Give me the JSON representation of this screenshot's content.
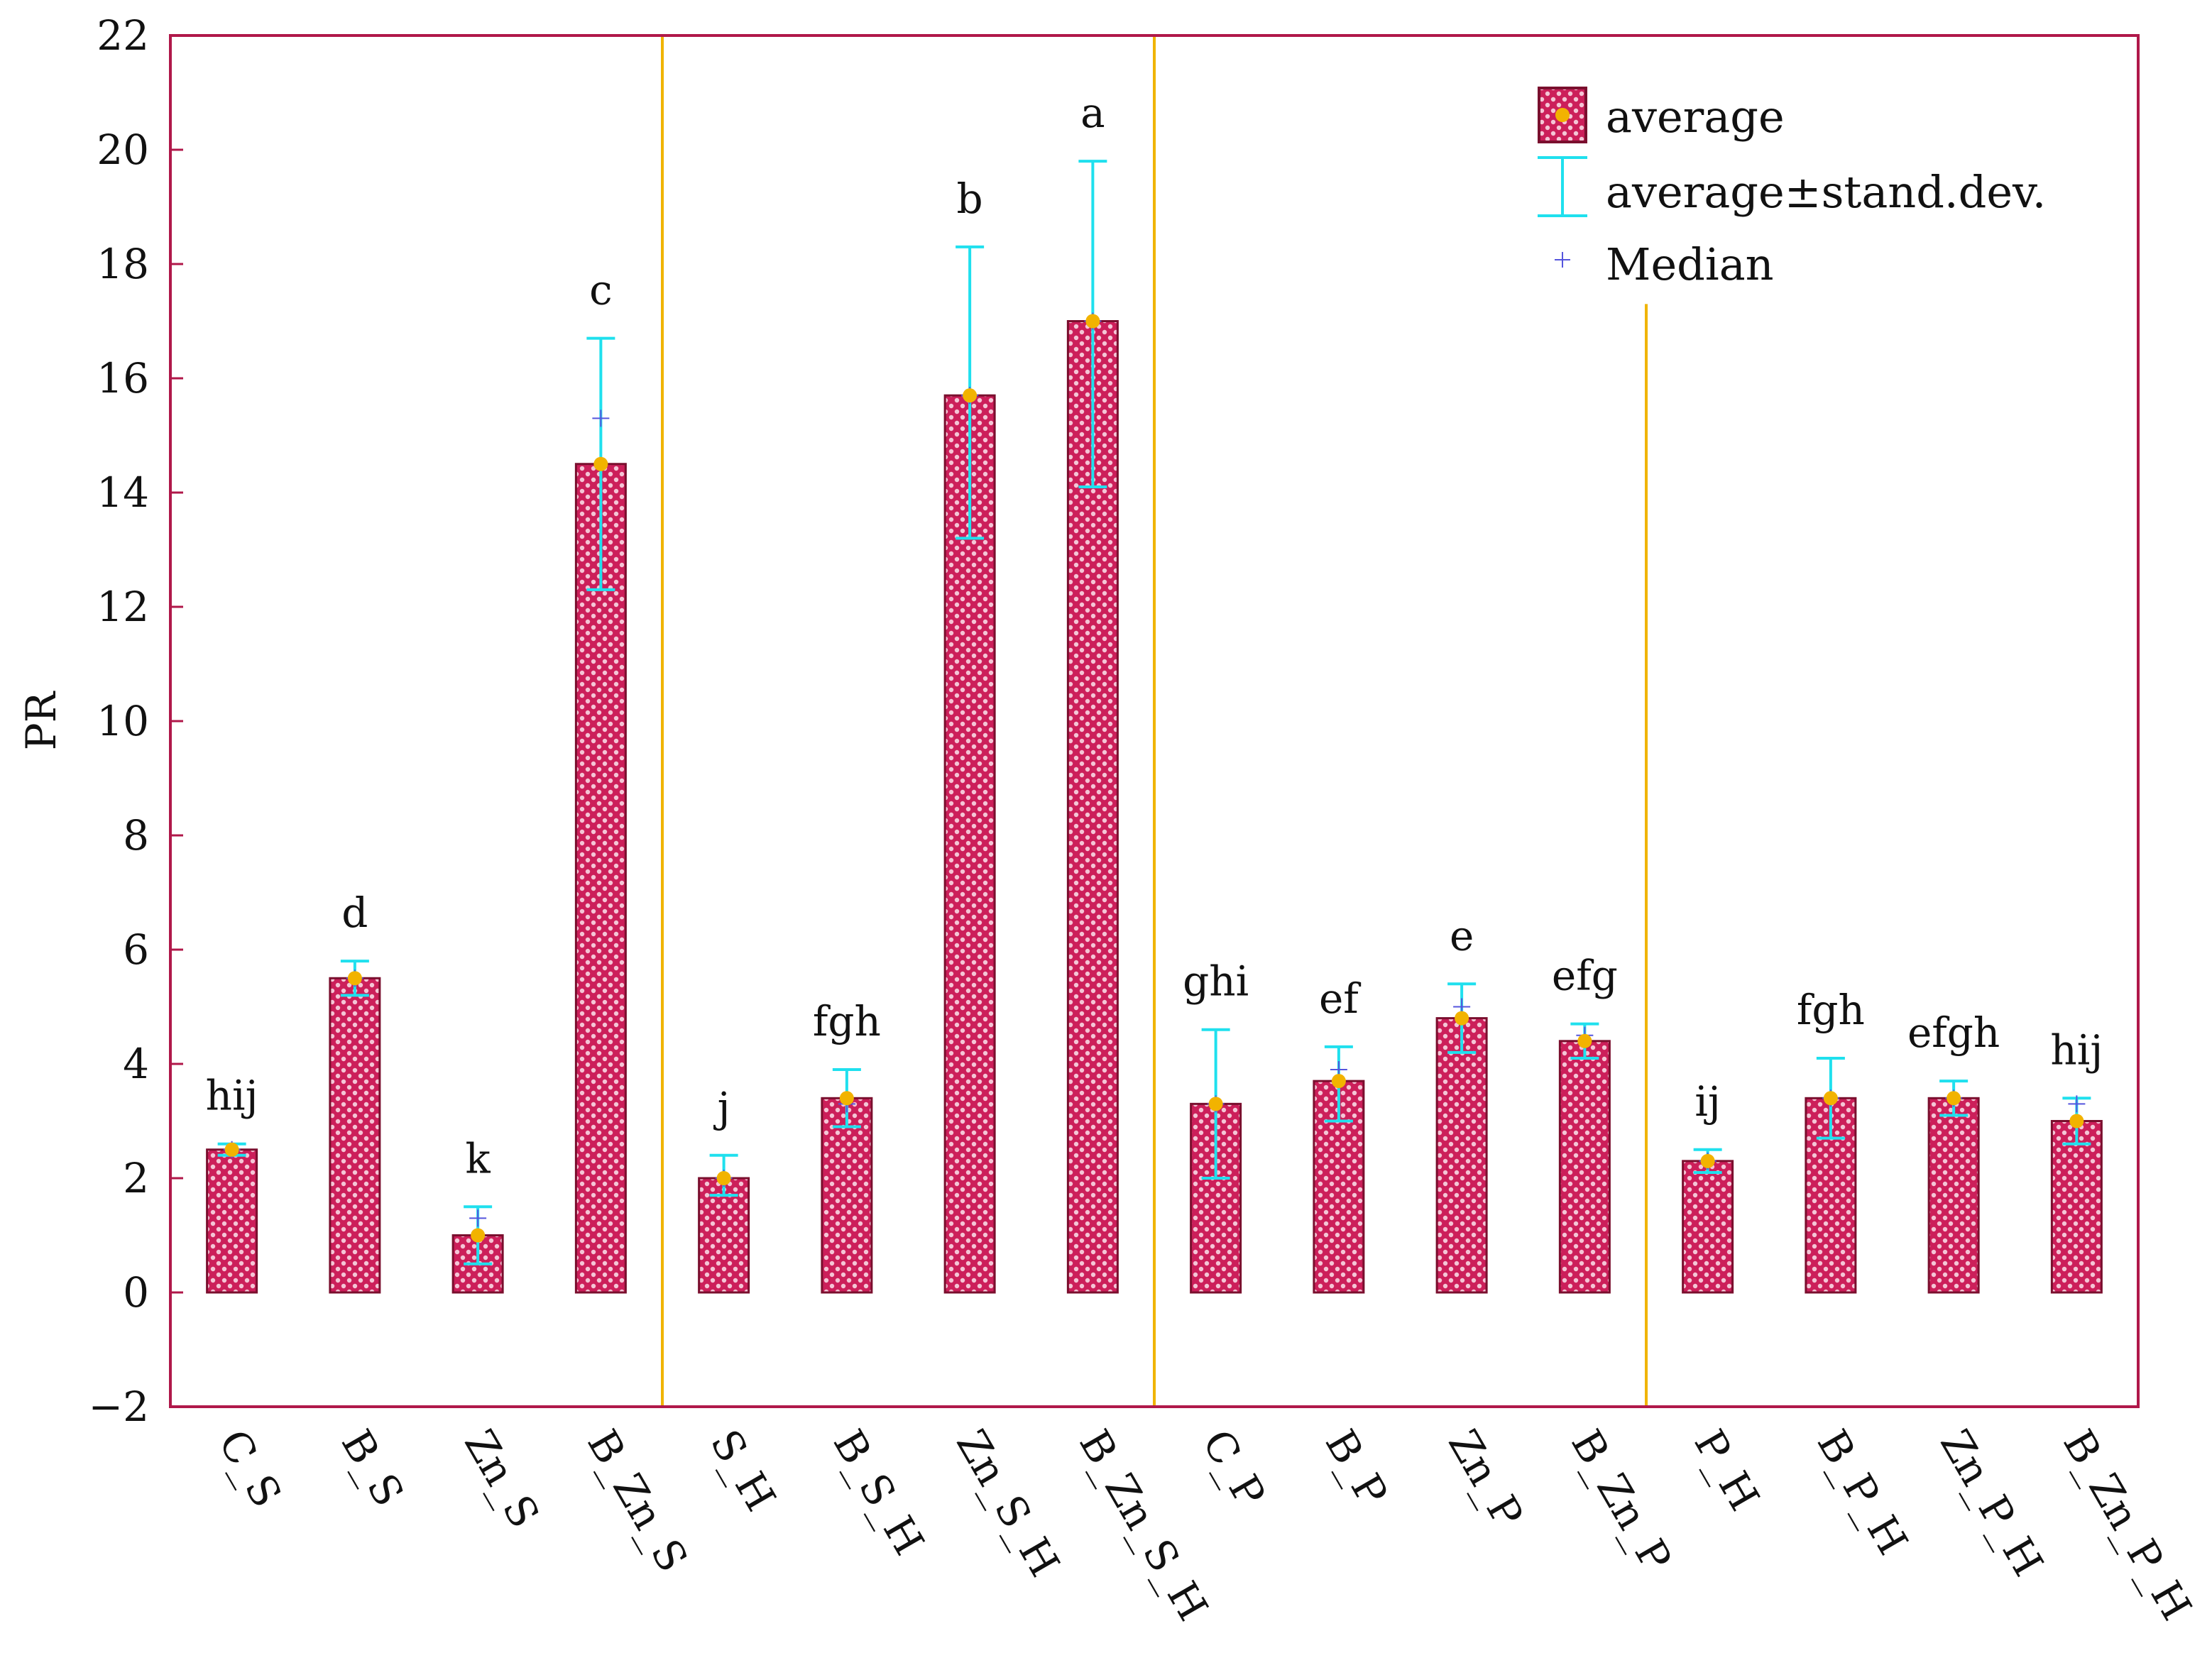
{
  "chart_data": {
    "type": "bar",
    "title": "",
    "xlabel": "",
    "ylabel": "PR",
    "ylim": [
      -2,
      22
    ],
    "yticks": [
      -2,
      0,
      2,
      4,
      6,
      8,
      10,
      12,
      14,
      16,
      18,
      20,
      22
    ],
    "ytick_labels": [
      "−2",
      "0",
      "2",
      "4",
      "6",
      "8",
      "10",
      "12",
      "14",
      "16",
      "18",
      "20",
      "22"
    ],
    "grid": false,
    "legend_position": "top-right",
    "categories": [
      "C_S",
      "B_S",
      "Zn_S",
      "B_Zn_S",
      "S_H",
      "B_S_H",
      "Zn_S_H",
      "B_Zn_S_H",
      "C_P",
      "B_P",
      "Zn_P",
      "B_Zn_P",
      "P_H",
      "B_P_H",
      "Zn_P_H",
      "B_Zn_P_H"
    ],
    "series": [
      {
        "name": "average",
        "values": [
          2.5,
          5.5,
          1.0,
          14.5,
          2.0,
          3.4,
          15.7,
          17.0,
          3.3,
          3.7,
          4.8,
          4.4,
          2.3,
          3.4,
          3.4,
          3.0
        ]
      },
      {
        "name": "average±stand.dev.",
        "lower": [
          2.4,
          5.2,
          0.5,
          12.3,
          1.7,
          2.9,
          13.2,
          14.1,
          2.0,
          3.0,
          4.2,
          4.1,
          2.1,
          2.7,
          3.1,
          2.6
        ],
        "upper": [
          2.6,
          5.8,
          1.5,
          16.7,
          2.4,
          3.9,
          18.3,
          19.8,
          4.6,
          4.3,
          5.4,
          4.7,
          2.5,
          4.1,
          3.7,
          3.4
        ]
      },
      {
        "name": "Median",
        "values": [
          2.5,
          5.5,
          1.3,
          15.3,
          2.0,
          3.3,
          15.7,
          17.0,
          3.3,
          3.9,
          5.0,
          4.5,
          2.3,
          3.4,
          3.4,
          3.3
        ]
      }
    ],
    "significance_letters": [
      "hij",
      "d",
      "k",
      "c",
      "j",
      "fgh",
      "b",
      "a",
      "ghi",
      "ef",
      "e",
      "efg",
      "ij",
      "fgh",
      "efgh",
      "hij"
    ],
    "group_separators_after": [
      4,
      8,
      12
    ],
    "legend": [
      {
        "label": "average",
        "icon": "patterned-bar-with-dot-icon"
      },
      {
        "label": "average±stand.dev.",
        "icon": "error-bar-icon"
      },
      {
        "label": "Median",
        "icon": "plus-marker-icon"
      }
    ],
    "colors": {
      "bar_fill": "#cc1f5a",
      "bar_dots": "#f4c6d6",
      "bar_border": "#7a0f2e",
      "error_bar": "#1fe0ee",
      "average_dot": "#f2b300",
      "median_marker": "#5555dd",
      "frame": "#b0184a",
      "separator": "#f0b400"
    }
  }
}
